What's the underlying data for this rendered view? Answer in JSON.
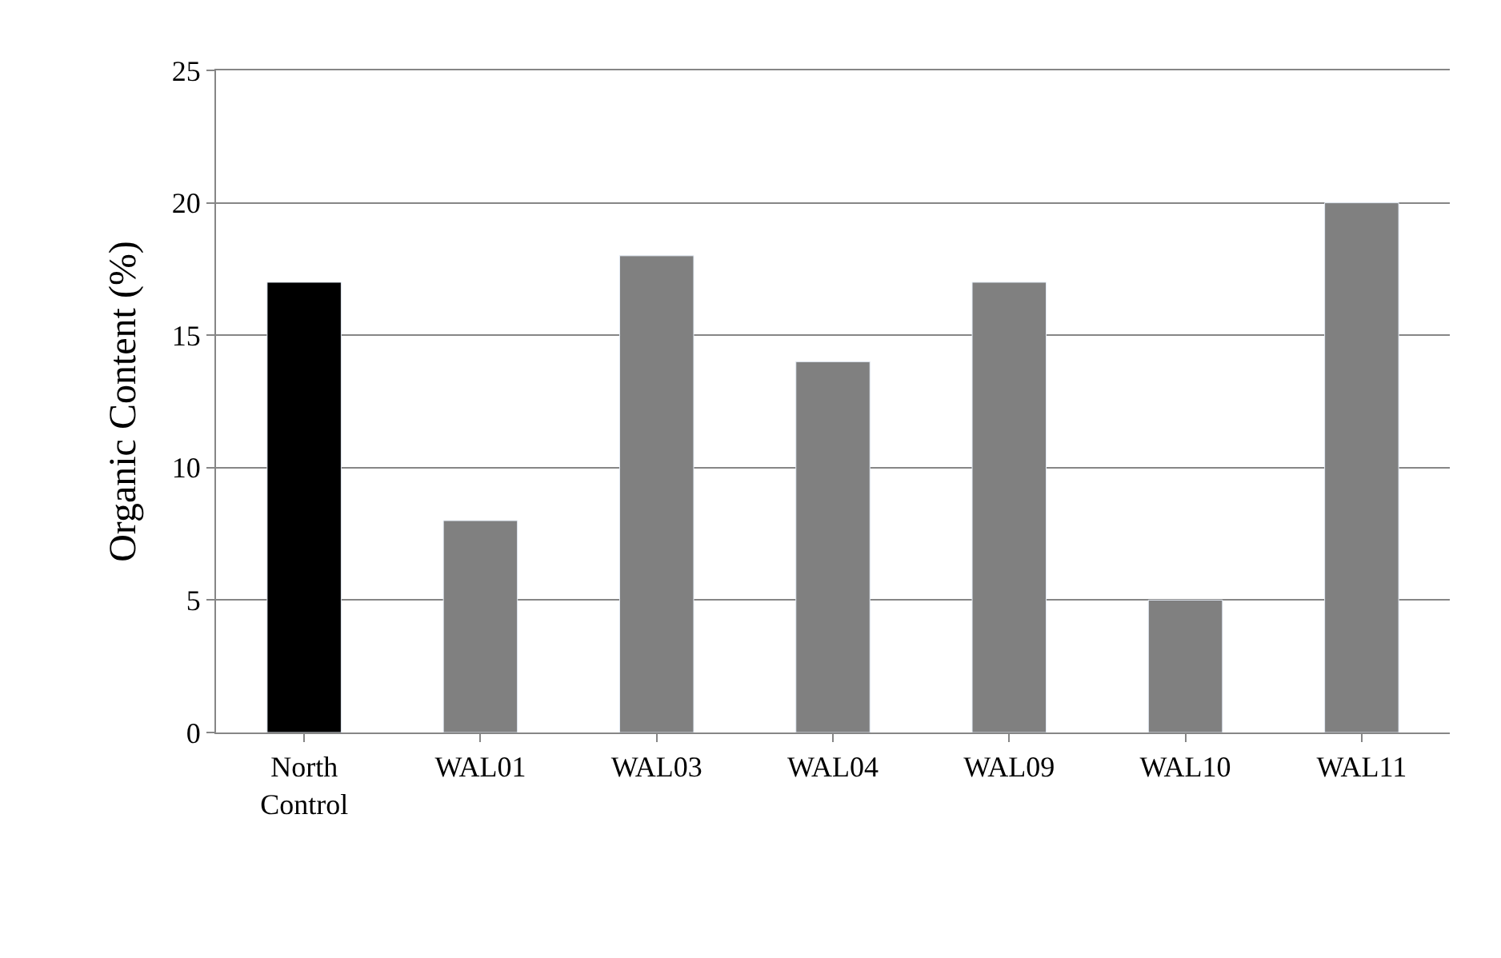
{
  "chart_data": {
    "type": "bar",
    "ylabel": "Organic Content (%)",
    "categories": [
      "North\nControl",
      "WAL01",
      "WAL03",
      "WAL04",
      "WAL09",
      "WAL10",
      "WAL11"
    ],
    "values": [
      17,
      8,
      18,
      14,
      17,
      5,
      20
    ],
    "colors": [
      "#000000",
      "#808080",
      "#808080",
      "#808080",
      "#808080",
      "#808080",
      "#808080"
    ],
    "ylim": [
      0,
      25
    ],
    "yticks": [
      0,
      5,
      10,
      15,
      20,
      25
    ],
    "grid": "y"
  }
}
